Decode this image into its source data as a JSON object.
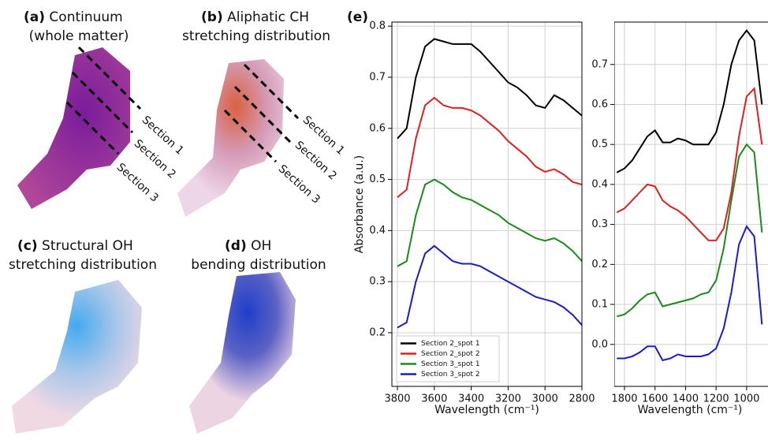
{
  "panels": [
    {
      "label": "(a)",
      "title": "Continuum",
      "subtitle": "(whole matter)",
      "sections": [
        "Section 1",
        "Section 2",
        "Section 3"
      ]
    },
    {
      "label": "(b)",
      "title": "Aliphatic CH",
      "subtitle": "stretching distribution",
      "sections": [
        "Section 1",
        "Section 2",
        "Section 3"
      ]
    },
    {
      "label": "(c)",
      "title": "Structural OH",
      "subtitle": "stretching distribution"
    },
    {
      "label": "(d)",
      "title": "OH",
      "subtitle": "bending distribution"
    },
    {
      "label": "(e)"
    }
  ],
  "chart_data": [
    {
      "type": "line",
      "ylabel": "Absorbance (a.u.)",
      "xlabel": "Wavelength (cm⁻¹)",
      "x": [
        3800,
        3750,
        3700,
        3650,
        3600,
        3550,
        3500,
        3450,
        3400,
        3350,
        3300,
        3250,
        3200,
        3150,
        3100,
        3050,
        3000,
        2950,
        2900,
        2850,
        2800
      ],
      "xlim": [
        3830,
        2800
      ],
      "ylim": [
        0.095,
        0.808
      ],
      "xticks": [
        3800,
        3600,
        3400,
        3200,
        3000,
        2800
      ],
      "yticks": [
        0.2,
        0.3,
        0.4,
        0.5,
        0.6,
        0.7,
        0.8
      ],
      "grid": true,
      "legend": "lower-left",
      "series": [
        {
          "name": "Section 2_spot 1",
          "color": "#000000",
          "values": [
            0.58,
            0.6,
            0.7,
            0.76,
            0.775,
            0.77,
            0.765,
            0.765,
            0.765,
            0.75,
            0.73,
            0.71,
            0.69,
            0.68,
            0.665,
            0.645,
            0.64,
            0.665,
            0.655,
            0.64,
            0.625
          ]
        },
        {
          "name": "Section 2_spot 2",
          "color": "#e02020",
          "values": [
            0.465,
            0.48,
            0.58,
            0.645,
            0.66,
            0.645,
            0.64,
            0.64,
            0.635,
            0.625,
            0.61,
            0.595,
            0.575,
            0.56,
            0.545,
            0.525,
            0.515,
            0.52,
            0.51,
            0.495,
            0.49
          ]
        },
        {
          "name": "Section 3_spot 1",
          "color": "#1a8a1a",
          "values": [
            0.33,
            0.34,
            0.43,
            0.49,
            0.5,
            0.49,
            0.475,
            0.465,
            0.46,
            0.45,
            0.44,
            0.43,
            0.415,
            0.405,
            0.395,
            0.385,
            0.38,
            0.385,
            0.375,
            0.36,
            0.34
          ]
        },
        {
          "name": "Section 3_spot 2",
          "color": "#1a1ad0",
          "values": [
            0.21,
            0.22,
            0.3,
            0.355,
            0.37,
            0.355,
            0.34,
            0.335,
            0.335,
            0.33,
            0.32,
            0.31,
            0.3,
            0.29,
            0.28,
            0.27,
            0.265,
            0.26,
            0.25,
            0.235,
            0.215
          ]
        }
      ]
    },
    {
      "type": "line",
      "xlabel": "Wavelength (cm⁻¹)",
      "x": [
        1850,
        1800,
        1750,
        1700,
        1650,
        1600,
        1550,
        1500,
        1450,
        1400,
        1350,
        1300,
        1250,
        1200,
        1150,
        1100,
        1050,
        1000,
        950,
        900
      ],
      "xlim": [
        1867,
        860
      ],
      "ylim": [
        -0.105,
        0.806
      ],
      "xticks": [
        1800,
        1600,
        1400,
        1200,
        1000
      ],
      "yticks": [
        {
          "value": 0,
          "label": "0.0"
        },
        0.1,
        0.2,
        0.3,
        0.4,
        0.5,
        0.6,
        0.7
      ],
      "grid": true,
      "series": [
        {
          "name": "Section 2_spot 1",
          "color": "#000000",
          "values": [
            0.43,
            0.44,
            0.46,
            0.49,
            0.52,
            0.535,
            0.505,
            0.505,
            0.515,
            0.51,
            0.5,
            0.5,
            0.5,
            0.53,
            0.6,
            0.7,
            0.76,
            0.785,
            0.76,
            0.6
          ]
        },
        {
          "name": "Section 2_spot 2",
          "color": "#e02020",
          "values": [
            0.33,
            0.34,
            0.36,
            0.38,
            0.4,
            0.395,
            0.36,
            0.345,
            0.335,
            0.32,
            0.3,
            0.28,
            0.26,
            0.26,
            0.29,
            0.38,
            0.52,
            0.62,
            0.64,
            0.5
          ]
        },
        {
          "name": "Section 3_spot 1",
          "color": "#1a8a1a",
          "values": [
            0.07,
            0.075,
            0.09,
            0.11,
            0.125,
            0.13,
            0.095,
            0.1,
            0.105,
            0.11,
            0.115,
            0.125,
            0.13,
            0.16,
            0.24,
            0.36,
            0.47,
            0.5,
            0.48,
            0.28
          ]
        },
        {
          "name": "Section 3_spot 2",
          "color": "#1a1ad0",
          "values": [
            -0.035,
            -0.035,
            -0.03,
            -0.02,
            -0.005,
            -0.005,
            -0.04,
            -0.035,
            -0.025,
            -0.03,
            -0.03,
            -0.03,
            -0.025,
            -0.01,
            0.04,
            0.13,
            0.25,
            0.295,
            0.27,
            0.05
          ]
        }
      ]
    }
  ]
}
